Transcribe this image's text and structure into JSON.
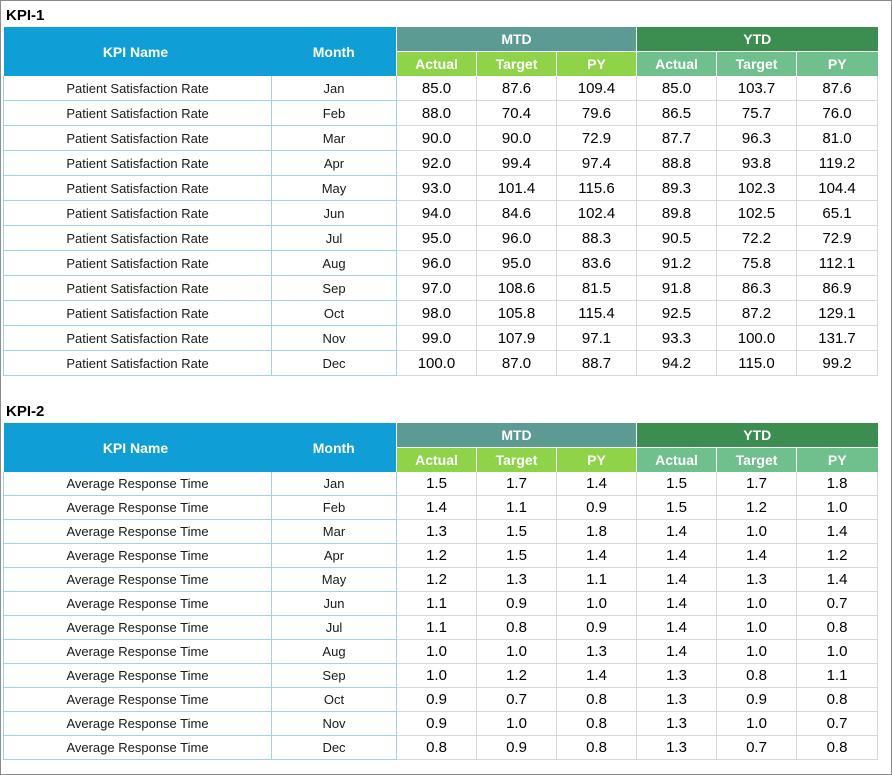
{
  "headers": {
    "kpi_name": "KPI Name",
    "month": "Month",
    "mtd": "MTD",
    "ytd": "YTD",
    "sub": [
      "Actual",
      "Target",
      "PY",
      "Actual",
      "Target",
      "PY"
    ]
  },
  "kpis": [
    {
      "title": "KPI-1",
      "rows": [
        {
          "name": "Patient Satisfaction Rate",
          "month": "Jan",
          "mtd_actual": "85.0",
          "mtd_target": "87.6",
          "mtd_py": "109.4",
          "ytd_actual": "85.0",
          "ytd_target": "103.7",
          "ytd_py": "87.6"
        },
        {
          "name": "Patient Satisfaction Rate",
          "month": "Feb",
          "mtd_actual": "88.0",
          "mtd_target": "70.4",
          "mtd_py": "79.6",
          "ytd_actual": "86.5",
          "ytd_target": "75.7",
          "ytd_py": "76.0"
        },
        {
          "name": "Patient Satisfaction Rate",
          "month": "Mar",
          "mtd_actual": "90.0",
          "mtd_target": "90.0",
          "mtd_py": "72.9",
          "ytd_actual": "87.7",
          "ytd_target": "96.3",
          "ytd_py": "81.0"
        },
        {
          "name": "Patient Satisfaction Rate",
          "month": "Apr",
          "mtd_actual": "92.0",
          "mtd_target": "99.4",
          "mtd_py": "97.4",
          "ytd_actual": "88.8",
          "ytd_target": "93.8",
          "ytd_py": "119.2"
        },
        {
          "name": "Patient Satisfaction Rate",
          "month": "May",
          "mtd_actual": "93.0",
          "mtd_target": "101.4",
          "mtd_py": "115.6",
          "ytd_actual": "89.3",
          "ytd_target": "102.3",
          "ytd_py": "104.4"
        },
        {
          "name": "Patient Satisfaction Rate",
          "month": "Jun",
          "mtd_actual": "94.0",
          "mtd_target": "84.6",
          "mtd_py": "102.4",
          "ytd_actual": "89.8",
          "ytd_target": "102.5",
          "ytd_py": "65.1"
        },
        {
          "name": "Patient Satisfaction Rate",
          "month": "Jul",
          "mtd_actual": "95.0",
          "mtd_target": "96.0",
          "mtd_py": "88.3",
          "ytd_actual": "90.5",
          "ytd_target": "72.2",
          "ytd_py": "72.9"
        },
        {
          "name": "Patient Satisfaction Rate",
          "month": "Aug",
          "mtd_actual": "96.0",
          "mtd_target": "95.0",
          "mtd_py": "83.6",
          "ytd_actual": "91.2",
          "ytd_target": "75.8",
          "ytd_py": "112.1"
        },
        {
          "name": "Patient Satisfaction Rate",
          "month": "Sep",
          "mtd_actual": "97.0",
          "mtd_target": "108.6",
          "mtd_py": "81.5",
          "ytd_actual": "91.8",
          "ytd_target": "86.3",
          "ytd_py": "86.9"
        },
        {
          "name": "Patient Satisfaction Rate",
          "month": "Oct",
          "mtd_actual": "98.0",
          "mtd_target": "105.8",
          "mtd_py": "115.4",
          "ytd_actual": "92.5",
          "ytd_target": "87.2",
          "ytd_py": "129.1"
        },
        {
          "name": "Patient Satisfaction Rate",
          "month": "Nov",
          "mtd_actual": "99.0",
          "mtd_target": "107.9",
          "mtd_py": "97.1",
          "ytd_actual": "93.3",
          "ytd_target": "100.0",
          "ytd_py": "131.7"
        },
        {
          "name": "Patient Satisfaction Rate",
          "month": "Dec",
          "mtd_actual": "100.0",
          "mtd_target": "87.0",
          "mtd_py": "88.7",
          "ytd_actual": "94.2",
          "ytd_target": "115.0",
          "ytd_py": "99.2"
        }
      ]
    },
    {
      "title": "KPI-2",
      "rows": [
        {
          "name": "Average Response Time",
          "month": "Jan",
          "mtd_actual": "1.5",
          "mtd_target": "1.7",
          "mtd_py": "1.4",
          "ytd_actual": "1.5",
          "ytd_target": "1.7",
          "ytd_py": "1.8"
        },
        {
          "name": "Average Response Time",
          "month": "Feb",
          "mtd_actual": "1.4",
          "mtd_target": "1.1",
          "mtd_py": "0.9",
          "ytd_actual": "1.5",
          "ytd_target": "1.2",
          "ytd_py": "1.0"
        },
        {
          "name": "Average Response Time",
          "month": "Mar",
          "mtd_actual": "1.3",
          "mtd_target": "1.5",
          "mtd_py": "1.8",
          "ytd_actual": "1.4",
          "ytd_target": "1.0",
          "ytd_py": "1.4"
        },
        {
          "name": "Average Response Time",
          "month": "Apr",
          "mtd_actual": "1.2",
          "mtd_target": "1.5",
          "mtd_py": "1.4",
          "ytd_actual": "1.4",
          "ytd_target": "1.4",
          "ytd_py": "1.2"
        },
        {
          "name": "Average Response Time",
          "month": "May",
          "mtd_actual": "1.2",
          "mtd_target": "1.3",
          "mtd_py": "1.1",
          "ytd_actual": "1.4",
          "ytd_target": "1.3",
          "ytd_py": "1.4"
        },
        {
          "name": "Average Response Time",
          "month": "Jun",
          "mtd_actual": "1.1",
          "mtd_target": "0.9",
          "mtd_py": "1.0",
          "ytd_actual": "1.4",
          "ytd_target": "1.0",
          "ytd_py": "0.7"
        },
        {
          "name": "Average Response Time",
          "month": "Jul",
          "mtd_actual": "1.1",
          "mtd_target": "0.8",
          "mtd_py": "0.9",
          "ytd_actual": "1.4",
          "ytd_target": "1.0",
          "ytd_py": "0.8"
        },
        {
          "name": "Average Response Time",
          "month": "Aug",
          "mtd_actual": "1.0",
          "mtd_target": "1.0",
          "mtd_py": "1.3",
          "ytd_actual": "1.4",
          "ytd_target": "1.0",
          "ytd_py": "1.0"
        },
        {
          "name": "Average Response Time",
          "month": "Sep",
          "mtd_actual": "1.0",
          "mtd_target": "1.2",
          "mtd_py": "1.4",
          "ytd_actual": "1.3",
          "ytd_target": "0.8",
          "ytd_py": "1.1"
        },
        {
          "name": "Average Response Time",
          "month": "Oct",
          "mtd_actual": "0.9",
          "mtd_target": "0.7",
          "mtd_py": "0.8",
          "ytd_actual": "1.3",
          "ytd_target": "0.9",
          "ytd_py": "0.8"
        },
        {
          "name": "Average Response Time",
          "month": "Nov",
          "mtd_actual": "0.9",
          "mtd_target": "1.0",
          "mtd_py": "0.8",
          "ytd_actual": "1.3",
          "ytd_target": "1.0",
          "ytd_py": "0.7"
        },
        {
          "name": "Average Response Time",
          "month": "Dec",
          "mtd_actual": "0.8",
          "mtd_target": "0.9",
          "mtd_py": "0.8",
          "ytd_actual": "1.3",
          "ytd_target": "0.7",
          "ytd_py": "0.8"
        }
      ]
    }
  ]
}
